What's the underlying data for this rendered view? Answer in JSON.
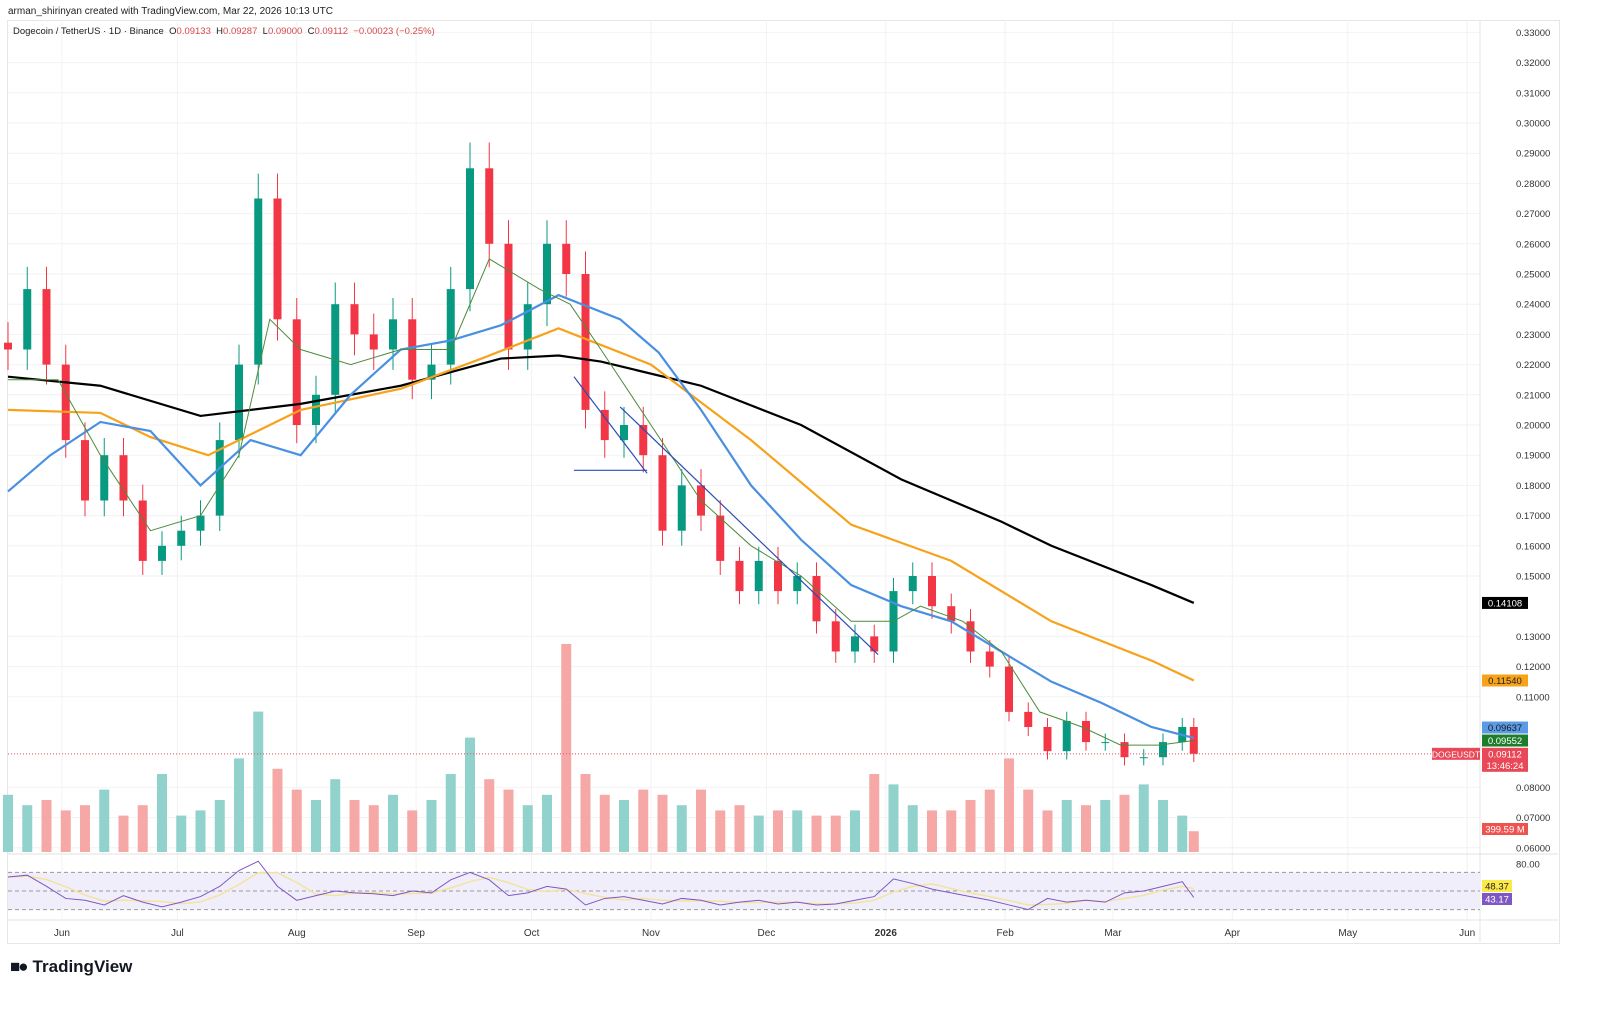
{
  "header": {
    "credit": "arman_shirinyan created with TradingView.com, Mar 22, 2026 10:13 UTC",
    "symbol": "Dogecoin / TetherUS · 1D · Binance",
    "o_label": "O",
    "o": "0.09133",
    "h_label": "H",
    "h": "0.09287",
    "l_label": "L",
    "l": "0.09000",
    "c_label": "C",
    "c": "0.09112",
    "change": "−0.00023 (−0.25%)"
  },
  "logo": {
    "text": "TradingView"
  },
  "chart_data": {
    "type": "candlestick",
    "title": "Dogecoin / TetherUS · 1D · Binance",
    "ylim": [
      0.06,
      0.33
    ],
    "price_ticks": [
      "0.33000",
      "0.32000",
      "0.31000",
      "0.30000",
      "0.29000",
      "0.28000",
      "0.27000",
      "0.26000",
      "0.25000",
      "0.24000",
      "0.23000",
      "0.22000",
      "0.21000",
      "0.20000",
      "0.19000",
      "0.18000",
      "0.17000",
      "0.16000",
      "0.15000",
      "0.13000",
      "0.12000",
      "0.11000",
      "0.08000",
      "0.07000",
      "0.06000"
    ],
    "time_ticks": [
      {
        "label": "Jun",
        "date": "2025-06-01"
      },
      {
        "label": "Jul",
        "date": "2025-07-01"
      },
      {
        "label": "Aug",
        "date": "2025-08-01"
      },
      {
        "label": "Sep",
        "date": "2025-09-01"
      },
      {
        "label": "Oct",
        "date": "2025-10-01"
      },
      {
        "label": "Nov",
        "date": "2025-11-01"
      },
      {
        "label": "Dec",
        "date": "2025-12-01"
      },
      {
        "label": "2026",
        "date": "2026-01-01"
      },
      {
        "label": "Feb",
        "date": "2026-02-01"
      },
      {
        "label": "Mar",
        "date": "2026-03-01"
      },
      {
        "label": "Apr",
        "date": "2026-04-01"
      },
      {
        "label": "May",
        "date": "2026-05-01"
      },
      {
        "label": "Jun",
        "date": "2026-06-01"
      }
    ],
    "dates": [
      "2025-05-18",
      "2025-05-23",
      "2025-05-28",
      "2025-06-02",
      "2025-06-07",
      "2025-06-12",
      "2025-06-17",
      "2025-06-22",
      "2025-06-27",
      "2025-07-02",
      "2025-07-07",
      "2025-07-12",
      "2025-07-17",
      "2025-07-22",
      "2025-07-27",
      "2025-08-01",
      "2025-08-06",
      "2025-08-11",
      "2025-08-16",
      "2025-08-21",
      "2025-08-26",
      "2025-08-31",
      "2025-09-05",
      "2025-09-10",
      "2025-09-15",
      "2025-09-20",
      "2025-09-25",
      "2025-09-30",
      "2025-10-05",
      "2025-10-10",
      "2025-10-15",
      "2025-10-20",
      "2025-10-25",
      "2025-10-30",
      "2025-11-04",
      "2025-11-09",
      "2025-11-14",
      "2025-11-19",
      "2025-11-24",
      "2025-11-29",
      "2025-12-04",
      "2025-12-09",
      "2025-12-14",
      "2025-12-19",
      "2025-12-24",
      "2025-12-29",
      "2026-01-03",
      "2026-01-08",
      "2026-01-13",
      "2026-01-18",
      "2026-01-23",
      "2026-01-28",
      "2026-02-02",
      "2026-02-07",
      "2026-02-12",
      "2026-02-17",
      "2026-02-22",
      "2026-02-27",
      "2026-03-04",
      "2026-03-09",
      "2026-03-14",
      "2026-03-19",
      "2026-03-22"
    ],
    "close": [
      0.225,
      0.245,
      0.22,
      0.195,
      0.175,
      0.19,
      0.175,
      0.155,
      0.16,
      0.165,
      0.17,
      0.195,
      0.22,
      0.275,
      0.235,
      0.2,
      0.21,
      0.24,
      0.23,
      0.225,
      0.235,
      0.215,
      0.22,
      0.245,
      0.285,
      0.26,
      0.225,
      0.24,
      0.26,
      0.25,
      0.205,
      0.195,
      0.2,
      0.19,
      0.165,
      0.18,
      0.17,
      0.155,
      0.145,
      0.155,
      0.145,
      0.15,
      0.135,
      0.125,
      0.13,
      0.125,
      0.145,
      0.15,
      0.14,
      0.135,
      0.125,
      0.12,
      0.105,
      0.1,
      0.092,
      0.102,
      0.095,
      0.095,
      0.09,
      0.09,
      0.095,
      0.1,
      0.09112
    ],
    "volume_m": [
      1100,
      900,
      1000,
      800,
      900,
      1200,
      700,
      900,
      1500,
      700,
      800,
      1000,
      1800,
      2700,
      1600,
      1200,
      1000,
      1400,
      1000,
      900,
      1100,
      800,
      1000,
      1500,
      2200,
      1400,
      1200,
      900,
      1100,
      4000,
      1500,
      1100,
      1000,
      1200,
      1100,
      900,
      1200,
      800,
      900,
      700,
      800,
      800,
      700,
      700,
      800,
      1500,
      1300,
      900,
      800,
      800,
      1000,
      1200,
      1800,
      1200,
      800,
      1000,
      900,
      1000,
      1100,
      1300,
      1000,
      700,
      399.59
    ],
    "moving_averages": [
      {
        "color": "#000000",
        "points": [
          [
            "2025-05-18",
            0.216
          ],
          [
            "2025-06-11",
            0.213
          ],
          [
            "2025-07-07",
            0.203
          ],
          [
            "2025-08-02",
            0.207
          ],
          [
            "2025-08-28",
            0.213
          ],
          [
            "2025-09-23",
            0.222
          ],
          [
            "2025-10-08",
            0.223
          ],
          [
            "2025-10-19",
            0.221
          ],
          [
            "2025-11-14",
            0.213
          ],
          [
            "2025-12-10",
            0.2
          ],
          [
            "2026-01-05",
            0.182
          ],
          [
            "2026-01-31",
            0.168
          ],
          [
            "2026-02-13",
            0.16
          ],
          [
            "2026-03-11",
            0.147
          ],
          [
            "2026-03-22",
            0.14108
          ]
        ]
      },
      {
        "color": "#f7a21b",
        "points": [
          [
            "2025-05-18",
            0.205
          ],
          [
            "2025-06-11",
            0.204
          ],
          [
            "2025-06-24",
            0.196
          ],
          [
            "2025-07-09",
            0.19
          ],
          [
            "2025-08-02",
            0.205
          ],
          [
            "2025-08-28",
            0.212
          ],
          [
            "2025-09-18",
            0.222
          ],
          [
            "2025-10-08",
            0.232
          ],
          [
            "2025-11-01",
            0.22
          ],
          [
            "2025-11-27",
            0.195
          ],
          [
            "2025-12-23",
            0.167
          ],
          [
            "2026-01-18",
            0.155
          ],
          [
            "2026-02-13",
            0.135
          ],
          [
            "2026-03-11",
            0.122
          ],
          [
            "2026-03-22",
            0.1154
          ]
        ]
      },
      {
        "color": "#4a90e2",
        "points": [
          [
            "2025-05-18",
            0.178
          ],
          [
            "2025-05-29",
            0.19
          ],
          [
            "2025-06-11",
            0.201
          ],
          [
            "2025-06-24",
            0.198
          ],
          [
            "2025-07-07",
            0.18
          ],
          [
            "2025-07-20",
            0.195
          ],
          [
            "2025-08-02",
            0.19
          ],
          [
            "2025-08-15",
            0.21
          ],
          [
            "2025-08-28",
            0.225
          ],
          [
            "2025-09-10",
            0.228
          ],
          [
            "2025-09-23",
            0.233
          ],
          [
            "2025-10-08",
            0.243
          ],
          [
            "2025-10-24",
            0.235
          ],
          [
            "2025-11-03",
            0.224
          ],
          [
            "2025-11-14",
            0.205
          ],
          [
            "2025-11-27",
            0.18
          ],
          [
            "2025-12-10",
            0.162
          ],
          [
            "2025-12-23",
            0.147
          ],
          [
            "2026-01-05",
            0.14
          ],
          [
            "2026-01-18",
            0.135
          ],
          [
            "2026-01-31",
            0.125
          ],
          [
            "2026-02-13",
            0.115
          ],
          [
            "2026-02-26",
            0.108
          ],
          [
            "2026-03-11",
            0.1
          ],
          [
            "2026-03-22",
            0.09637
          ]
        ]
      },
      {
        "color": "#4c8c3c",
        "points": [
          [
            "2025-05-18",
            0.215
          ],
          [
            "2025-05-31",
            0.215
          ],
          [
            "2025-06-11",
            0.19
          ],
          [
            "2025-06-24",
            0.165
          ],
          [
            "2025-07-07",
            0.17
          ],
          [
            "2025-07-17",
            0.19
          ],
          [
            "2025-07-25",
            0.235
          ],
          [
            "2025-08-02",
            0.225
          ],
          [
            "2025-08-15",
            0.22
          ],
          [
            "2025-08-28",
            0.225
          ],
          [
            "2025-09-10",
            0.225
          ],
          [
            "2025-09-20",
            0.255
          ],
          [
            "2025-10-03",
            0.245
          ],
          [
            "2025-10-11",
            0.24
          ],
          [
            "2025-10-19",
            0.225
          ],
          [
            "2025-11-01",
            0.2
          ],
          [
            "2025-11-14",
            0.175
          ],
          [
            "2025-11-27",
            0.16
          ],
          [
            "2025-12-10",
            0.15
          ],
          [
            "2025-12-23",
            0.135
          ],
          [
            "2026-01-03",
            0.135
          ],
          [
            "2026-01-10",
            0.14
          ],
          [
            "2026-01-21",
            0.135
          ],
          [
            "2026-01-31",
            0.125
          ],
          [
            "2026-02-10",
            0.105
          ],
          [
            "2026-02-21",
            0.1
          ],
          [
            "2026-03-03",
            0.094
          ],
          [
            "2026-03-13",
            0.094
          ],
          [
            "2026-03-22",
            0.09552
          ]
        ]
      }
    ],
    "trendlines": [
      {
        "color": "#2a4db5",
        "from": [
          "2025-10-12",
          0.216
        ],
        "to": [
          "2025-10-31",
          0.184
        ]
      },
      {
        "color": "#2a4db5",
        "from": [
          "2025-10-12",
          0.185
        ],
        "to": [
          "2025-10-31",
          0.185
        ]
      },
      {
        "color": "#2a4db5",
        "from": [
          "2025-10-24",
          0.206
        ],
        "to": [
          "2025-12-30",
          0.124
        ]
      }
    ],
    "rsi": {
      "levels": [
        70,
        50,
        30
      ],
      "axis_label": "80.00",
      "values": [
        65,
        67,
        55,
        42,
        40,
        35,
        45,
        38,
        33,
        38,
        44,
        55,
        72,
        82,
        55,
        40,
        45,
        50,
        48,
        47,
        45,
        50,
        48,
        62,
        70,
        62,
        45,
        48,
        55,
        52,
        35,
        42,
        44,
        40,
        36,
        42,
        40,
        35,
        38,
        40,
        36,
        38,
        35,
        36,
        40,
        44,
        63,
        58,
        52,
        48,
        44,
        40,
        35,
        30,
        42,
        38,
        40,
        38,
        48,
        50,
        55,
        60,
        43
      ],
      "ma_label": "48.37",
      "rsi_label": "43.17"
    },
    "price_labels": [
      {
        "text": "0.14108",
        "value": 0.14108,
        "bg": "#000000",
        "fg": "#ffffff"
      },
      {
        "text": "0.11540",
        "value": 0.1154,
        "bg": "#f7a21b",
        "fg": "#222222"
      },
      {
        "text": "0.09637",
        "value": 0.09637,
        "bg": "#5b9be6",
        "fg": "#1a1a1a"
      },
      {
        "text": "0.09552",
        "value": 0.09552,
        "bg": "#1e7d2a",
        "fg": "#ffffff"
      }
    ],
    "last_price": {
      "symbol": "DOGEUSDT",
      "price": "0.09112",
      "value": 0.09112,
      "countdown": "13:46:24",
      "bg": "#e84857"
    },
    "volume_label": "399.59 M"
  }
}
